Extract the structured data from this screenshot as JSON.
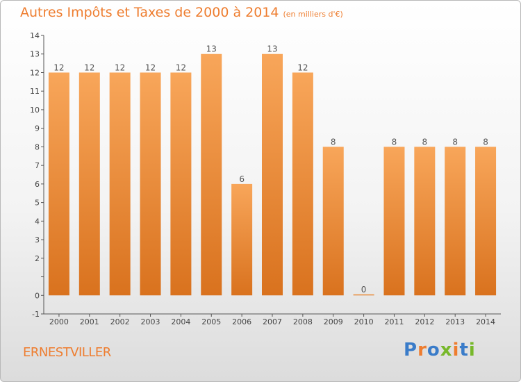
{
  "header": {
    "title": "Autres Impôts et Taxes de 2000 à 2014",
    "subtitle": "(en milliers d'€)"
  },
  "footer": {
    "location": "ERNESTVILLER",
    "logo": "Proxiti"
  },
  "colors": {
    "accent": "#ee7d2f",
    "bar_light": "#f8a65a",
    "bar_dark": "#d9721e",
    "logo_letters": [
      "#3a7cc9",
      "#ee7d2f",
      "#3a7cc9",
      "#77b82a",
      "#ee7d2f",
      "#3a7cc9",
      "#77b82a"
    ]
  },
  "chart_data": {
    "type": "bar",
    "title": "Autres Impôts et Taxes de 2000 à 2014",
    "subtitle": "(en milliers d'€)",
    "xlabel": "",
    "ylabel": "",
    "categories": [
      "2000",
      "2001",
      "2002",
      "2003",
      "2004",
      "2005",
      "2006",
      "2007",
      "2008",
      "2009",
      "2010",
      "2011",
      "2012",
      "2013",
      "2014"
    ],
    "values": [
      12,
      12,
      12,
      12,
      12,
      13,
      6,
      13,
      12,
      8,
      0,
      8,
      8,
      8,
      8
    ],
    "data_labels": [
      "12",
      "12",
      "12",
      "12",
      "12",
      "13",
      "6",
      "13",
      "12",
      "8",
      "0",
      "8",
      "8",
      "8",
      "8"
    ],
    "ylim": [
      -1,
      14
    ],
    "yticks": [
      -1,
      0,
      1,
      2,
      3,
      4,
      5,
      6,
      7,
      8,
      9,
      10,
      11,
      12,
      13,
      14
    ],
    "ytick_labels": [
      "-1",
      "0",
      "",
      "2",
      "3",
      "4",
      "5",
      "6",
      "7",
      "8",
      "9",
      "10",
      "11",
      "12",
      "13",
      "14"
    ],
    "grid": false,
    "legend": "none"
  }
}
